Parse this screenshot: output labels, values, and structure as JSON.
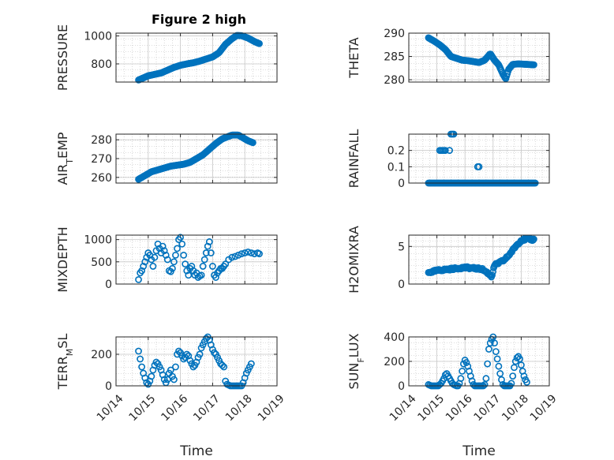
{
  "figure": {
    "title": "Figure 2 high",
    "marker_color": "#0072BD"
  },
  "chart_data": [
    {
      "id": "pressure",
      "type": "scatter",
      "ylabel": {
        "main": "PRESSURE"
      },
      "xlim": [
        0,
        5
      ],
      "ylim": [
        670,
        1020
      ],
      "yticks": [
        800,
        1000
      ],
      "xticks": [
        0,
        1,
        2,
        3,
        4,
        5
      ],
      "xticklabels": [
        "10/14",
        "10/15",
        "10/16",
        "10/17",
        "10/18",
        "10/19"
      ],
      "show_xticklabels": false,
      "anchors": [
        [
          0.7,
          685
        ],
        [
          0.85,
          700
        ],
        [
          1.0,
          715
        ],
        [
          1.2,
          725
        ],
        [
          1.4,
          735
        ],
        [
          1.6,
          755
        ],
        [
          1.8,
          775
        ],
        [
          2.0,
          790
        ],
        [
          2.2,
          800
        ],
        [
          2.4,
          808
        ],
        [
          2.6,
          820
        ],
        [
          2.8,
          835
        ],
        [
          3.0,
          850
        ],
        [
          3.2,
          880
        ],
        [
          3.4,
          940
        ],
        [
          3.6,
          980
        ],
        [
          3.75,
          1003
        ],
        [
          3.9,
          1002
        ],
        [
          4.1,
          985
        ],
        [
          4.3,
          960
        ],
        [
          4.45,
          945
        ]
      ],
      "count": 140
    },
    {
      "id": "theta",
      "type": "scatter",
      "ylabel": {
        "main": "THETA"
      },
      "xlim": [
        0,
        5
      ],
      "ylim": [
        279.5,
        290
      ],
      "yticks": [
        280,
        285,
        290
      ],
      "xticks": [
        0,
        1,
        2,
        3,
        4,
        5
      ],
      "xticklabels": [
        "10/14",
        "10/15",
        "10/16",
        "10/17",
        "10/18",
        "10/19"
      ],
      "show_xticklabels": false,
      "anchors": [
        [
          0.7,
          289
        ],
        [
          0.9,
          288.3
        ],
        [
          1.1,
          287.5
        ],
        [
          1.3,
          286.5
        ],
        [
          1.5,
          285
        ],
        [
          1.7,
          284.6
        ],
        [
          1.9,
          284.2
        ],
        [
          2.1,
          284.1
        ],
        [
          2.3,
          283.9
        ],
        [
          2.5,
          283.7
        ],
        [
          2.7,
          284.2
        ],
        [
          2.9,
          285.6
        ],
        [
          3.05,
          284.2
        ],
        [
          3.2,
          283.2
        ],
        [
          3.35,
          281.2
        ],
        [
          3.45,
          280.2
        ],
        [
          3.55,
          282.2
        ],
        [
          3.7,
          283.3
        ],
        [
          3.9,
          283.4
        ],
        [
          4.2,
          283.3
        ],
        [
          4.45,
          283.2
        ]
      ],
      "count": 140
    },
    {
      "id": "air_temp",
      "type": "scatter",
      "ylabel": {
        "main": "AIR",
        "sub": "T",
        "rest": "EMP"
      },
      "xlim": [
        0,
        5
      ],
      "ylim": [
        257,
        283
      ],
      "yticks": [
        260,
        270,
        280
      ],
      "xticks": [
        0,
        1,
        2,
        3,
        4,
        5
      ],
      "xticklabels": [
        "10/14",
        "10/15",
        "10/16",
        "10/17",
        "10/18",
        "10/19"
      ],
      "show_xticklabels": false,
      "anchors": [
        [
          0.7,
          259
        ],
        [
          0.9,
          261
        ],
        [
          1.1,
          263
        ],
        [
          1.3,
          264
        ],
        [
          1.5,
          265
        ],
        [
          1.7,
          266
        ],
        [
          1.9,
          266.5
        ],
        [
          2.1,
          267
        ],
        [
          2.3,
          268
        ],
        [
          2.5,
          270
        ],
        [
          2.7,
          272
        ],
        [
          2.9,
          275
        ],
        [
          3.1,
          278
        ],
        [
          3.3,
          280.5
        ],
        [
          3.45,
          281.5
        ],
        [
          3.6,
          282.5
        ],
        [
          3.8,
          282.5
        ],
        [
          3.95,
          281
        ],
        [
          4.1,
          279.5
        ],
        [
          4.25,
          278.5
        ]
      ],
      "count": 130
    },
    {
      "id": "rainfall",
      "type": "scatter",
      "ylabel": {
        "main": "RAINFALL"
      },
      "xlim": [
        0,
        5
      ],
      "ylim": [
        0,
        0.3
      ],
      "yticks": [
        0,
        0.1,
        0.2
      ],
      "yticklabels": [
        "0",
        "0.1",
        "0.2"
      ],
      "xticks": [
        0,
        1,
        2,
        3,
        4,
        5
      ],
      "xticklabels": [
        "10/14",
        "10/15",
        "10/16",
        "10/17",
        "10/18",
        "10/19"
      ],
      "show_xticklabels": false,
      "zero_range": [
        0.7,
        4.5
      ],
      "zero_count": 110,
      "spikes": [
        [
          1.1,
          0.2
        ],
        [
          1.15,
          0.2
        ],
        [
          1.2,
          0.2
        ],
        [
          1.25,
          0.2
        ],
        [
          1.3,
          0.2
        ],
        [
          1.45,
          0.2
        ],
        [
          1.5,
          0.3
        ],
        [
          1.55,
          0.3
        ],
        [
          1.6,
          0.3
        ],
        [
          2.45,
          0.1
        ],
        [
          2.5,
          0.1
        ]
      ]
    },
    {
      "id": "mixdepth",
      "type": "scatter",
      "ylabel": {
        "main": "MIXDEPTH"
      },
      "xlim": [
        0,
        5
      ],
      "ylim": [
        0,
        1100
      ],
      "yticks": [
        0,
        500,
        1000
      ],
      "xticks": [
        0,
        1,
        2,
        3,
        4,
        5
      ],
      "xticklabels": [
        "10/14",
        "10/15",
        "10/16",
        "10/17",
        "10/18",
        "10/19"
      ],
      "show_xticklabels": false,
      "points": [
        [
          0.7,
          100
        ],
        [
          0.75,
          250
        ],
        [
          0.8,
          300
        ],
        [
          0.85,
          400
        ],
        [
          0.9,
          500
        ],
        [
          0.95,
          600
        ],
        [
          1.0,
          700
        ],
        [
          1.05,
          650
        ],
        [
          1.1,
          550
        ],
        [
          1.15,
          400
        ],
        [
          1.2,
          600
        ],
        [
          1.25,
          750
        ],
        [
          1.3,
          900
        ],
        [
          1.35,
          800
        ],
        [
          1.4,
          700
        ],
        [
          1.45,
          850
        ],
        [
          1.5,
          750
        ],
        [
          1.55,
          650
        ],
        [
          1.6,
          550
        ],
        [
          1.65,
          300
        ],
        [
          1.7,
          280
        ],
        [
          1.75,
          350
        ],
        [
          1.8,
          500
        ],
        [
          1.85,
          650
        ],
        [
          1.9,
          800
        ],
        [
          1.95,
          1000
        ],
        [
          2.0,
          1050
        ],
        [
          2.05,
          900
        ],
        [
          2.1,
          650
        ],
        [
          2.15,
          450
        ],
        [
          2.2,
          300
        ],
        [
          2.25,
          200
        ],
        [
          2.3,
          350
        ],
        [
          2.35,
          400
        ],
        [
          2.4,
          300
        ],
        [
          2.45,
          200
        ],
        [
          2.5,
          250
        ],
        [
          2.55,
          150
        ],
        [
          2.6,
          180
        ],
        [
          2.65,
          200
        ],
        [
          2.7,
          400
        ],
        [
          2.75,
          550
        ],
        [
          2.8,
          700
        ],
        [
          2.85,
          850
        ],
        [
          2.9,
          950
        ],
        [
          2.95,
          700
        ],
        [
          3.0,
          400
        ],
        [
          3.05,
          200
        ],
        [
          3.1,
          150
        ],
        [
          3.15,
          250
        ],
        [
          3.2,
          300
        ],
        [
          3.25,
          350
        ],
        [
          3.3,
          350
        ],
        [
          3.35,
          400
        ],
        [
          3.4,
          450
        ],
        [
          3.5,
          550
        ],
        [
          3.6,
          600
        ],
        [
          3.7,
          620
        ],
        [
          3.8,
          650
        ],
        [
          3.9,
          680
        ],
        [
          4.0,
          700
        ],
        [
          4.1,
          720
        ],
        [
          4.2,
          700
        ],
        [
          4.3,
          680
        ],
        [
          4.4,
          700
        ],
        [
          4.45,
          680
        ]
      ]
    },
    {
      "id": "h2omixra",
      "type": "scatter",
      "ylabel": {
        "main": "H2OMIXRA"
      },
      "xlim": [
        0,
        5
      ],
      "ylim": [
        0,
        6.5
      ],
      "yticks": [
        0,
        5
      ],
      "xticks": [
        0,
        1,
        2,
        3,
        4,
        5
      ],
      "xticklabels": [
        "10/14",
        "10/15",
        "10/16",
        "10/17",
        "10/18",
        "10/19"
      ],
      "show_xticklabels": false,
      "anchors": [
        [
          0.7,
          1.5
        ],
        [
          1.0,
          1.8
        ],
        [
          1.5,
          2.0
        ],
        [
          2.0,
          2.2
        ],
        [
          2.3,
          2.1
        ],
        [
          2.6,
          2.0
        ],
        [
          2.8,
          1.5
        ],
        [
          2.95,
          1.0
        ],
        [
          3.05,
          2.5
        ],
        [
          3.2,
          2.8
        ],
        [
          3.4,
          3.2
        ],
        [
          3.6,
          4.0
        ],
        [
          3.8,
          5.0
        ],
        [
          4.0,
          5.8
        ],
        [
          4.2,
          6.0
        ],
        [
          4.4,
          5.9
        ],
        [
          4.45,
          5.9
        ]
      ],
      "count": 140,
      "jitter": 0.25
    },
    {
      "id": "terr_msl",
      "type": "scatter",
      "ylabel": {
        "main": "TERR",
        "sub": "M",
        "rest": "SL"
      },
      "xlim": [
        0,
        5
      ],
      "ylim": [
        0,
        310
      ],
      "yticks": [
        0,
        200
      ],
      "xticks": [
        0,
        1,
        2,
        3,
        4,
        5
      ],
      "xticklabels": [
        "10/14",
        "10/15",
        "10/16",
        "10/17",
        "10/18",
        "10/19"
      ],
      "show_xticklabels": true,
      "xlabel": "Time",
      "points": [
        [
          0.7,
          220
        ],
        [
          0.75,
          170
        ],
        [
          0.8,
          120
        ],
        [
          0.85,
          80
        ],
        [
          0.9,
          50
        ],
        [
          0.95,
          20
        ],
        [
          1.0,
          10
        ],
        [
          1.05,
          30
        ],
        [
          1.1,
          60
        ],
        [
          1.15,
          100
        ],
        [
          1.2,
          130
        ],
        [
          1.25,
          150
        ],
        [
          1.3,
          140
        ],
        [
          1.35,
          120
        ],
        [
          1.4,
          100
        ],
        [
          1.45,
          70
        ],
        [
          1.5,
          40
        ],
        [
          1.55,
          20
        ],
        [
          1.6,
          40
        ],
        [
          1.65,
          80
        ],
        [
          1.7,
          100
        ],
        [
          1.75,
          60
        ],
        [
          1.8,
          40
        ],
        [
          1.85,
          120
        ],
        [
          1.9,
          200
        ],
        [
          1.95,
          220
        ],
        [
          2.0,
          210
        ],
        [
          2.05,
          190
        ],
        [
          2.1,
          170
        ],
        [
          2.15,
          180
        ],
        [
          2.2,
          200
        ],
        [
          2.25,
          190
        ],
        [
          2.3,
          160
        ],
        [
          2.35,
          140
        ],
        [
          2.4,
          120
        ],
        [
          2.45,
          130
        ],
        [
          2.5,
          150
        ],
        [
          2.55,
          180
        ],
        [
          2.6,
          200
        ],
        [
          2.65,
          240
        ],
        [
          2.7,
          260
        ],
        [
          2.75,
          280
        ],
        [
          2.8,
          300
        ],
        [
          2.85,
          310
        ],
        [
          2.9,
          290
        ],
        [
          2.95,
          260
        ],
        [
          3.0,
          230
        ],
        [
          3.05,
          210
        ],
        [
          3.1,
          200
        ],
        [
          3.15,
          180
        ],
        [
          3.2,
          160
        ],
        [
          3.25,
          140
        ],
        [
          3.3,
          130
        ],
        [
          3.35,
          120
        ],
        [
          3.4,
          30
        ],
        [
          3.45,
          10
        ],
        [
          3.5,
          5
        ],
        [
          3.55,
          0
        ],
        [
          3.6,
          0
        ],
        [
          3.65,
          0
        ],
        [
          3.7,
          0
        ],
        [
          3.75,
          0
        ],
        [
          3.8,
          0
        ],
        [
          3.85,
          0
        ],
        [
          3.9,
          0
        ],
        [
          3.95,
          20
        ],
        [
          4.0,
          50
        ],
        [
          4.05,
          80
        ],
        [
          4.1,
          100
        ],
        [
          4.15,
          120
        ],
        [
          4.2,
          140
        ]
      ]
    },
    {
      "id": "sun_flux",
      "type": "scatter",
      "ylabel": {
        "main": "SUN",
        "sub": "F",
        "rest": "LUX"
      },
      "xlim": [
        0,
        5
      ],
      "ylim": [
        0,
        400
      ],
      "yticks": [
        0,
        200,
        400
      ],
      "xticks": [
        0,
        1,
        2,
        3,
        4,
        5
      ],
      "xticklabels": [
        "10/14",
        "10/15",
        "10/16",
        "10/17",
        "10/18",
        "10/19"
      ],
      "show_xticklabels": true,
      "xlabel": "Time",
      "points": [
        [
          0.7,
          10
        ],
        [
          0.75,
          5
        ],
        [
          0.8,
          0
        ],
        [
          0.85,
          0
        ],
        [
          0.9,
          0
        ],
        [
          0.95,
          0
        ],
        [
          1.0,
          0
        ],
        [
          1.05,
          0
        ],
        [
          1.1,
          10
        ],
        [
          1.15,
          20
        ],
        [
          1.2,
          40
        ],
        [
          1.25,
          60
        ],
        [
          1.3,
          90
        ],
        [
          1.35,
          100
        ],
        [
          1.4,
          80
        ],
        [
          1.45,
          60
        ],
        [
          1.5,
          40
        ],
        [
          1.55,
          20
        ],
        [
          1.6,
          10
        ],
        [
          1.65,
          5
        ],
        [
          1.7,
          0
        ],
        [
          1.75,
          0
        ],
        [
          1.8,
          20
        ],
        [
          1.85,
          60
        ],
        [
          1.9,
          120
        ],
        [
          1.95,
          180
        ],
        [
          2.0,
          210
        ],
        [
          2.05,
          190
        ],
        [
          2.1,
          160
        ],
        [
          2.15,
          120
        ],
        [
          2.2,
          80
        ],
        [
          2.25,
          40
        ],
        [
          2.3,
          10
        ],
        [
          2.35,
          0
        ],
        [
          2.4,
          0
        ],
        [
          2.45,
          0
        ],
        [
          2.5,
          0
        ],
        [
          2.55,
          0
        ],
        [
          2.6,
          0
        ],
        [
          2.65,
          0
        ],
        [
          2.7,
          10
        ],
        [
          2.75,
          60
        ],
        [
          2.8,
          180
        ],
        [
          2.85,
          300
        ],
        [
          2.9,
          350
        ],
        [
          2.95,
          380
        ],
        [
          3.0,
          400
        ],
        [
          3.05,
          350
        ],
        [
          3.1,
          280
        ],
        [
          3.15,
          220
        ],
        [
          3.2,
          160
        ],
        [
          3.25,
          100
        ],
        [
          3.3,
          50
        ],
        [
          3.35,
          10
        ],
        [
          3.4,
          0
        ],
        [
          3.45,
          0
        ],
        [
          3.5,
          0
        ],
        [
          3.55,
          0
        ],
        [
          3.6,
          0
        ],
        [
          3.65,
          20
        ],
        [
          3.7,
          80
        ],
        [
          3.75,
          150
        ],
        [
          3.8,
          200
        ],
        [
          3.85,
          230
        ],
        [
          3.9,
          240
        ],
        [
          3.95,
          220
        ],
        [
          4.0,
          170
        ],
        [
          4.05,
          120
        ],
        [
          4.1,
          80
        ],
        [
          4.15,
          50
        ],
        [
          4.2,
          30
        ]
      ]
    }
  ]
}
